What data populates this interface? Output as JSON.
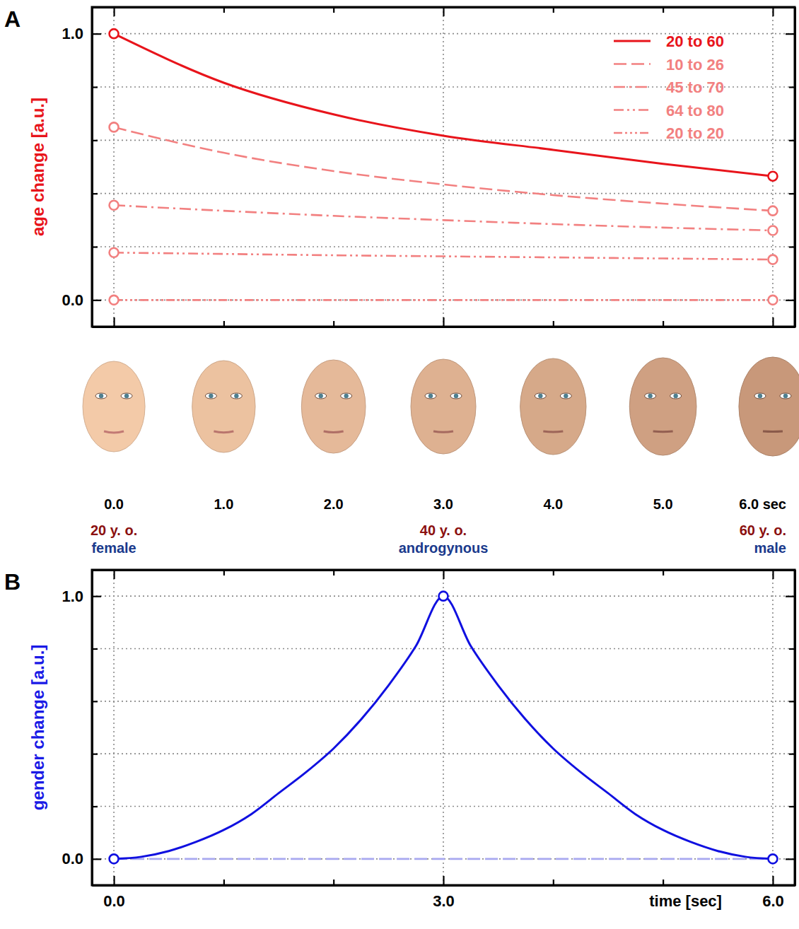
{
  "chart_data": [
    {
      "type": "line",
      "label": "A",
      "ylabel": "age change [a.u.]",
      "color": "#e8141b",
      "x": [
        0,
        1,
        2,
        3,
        4,
        5,
        6
      ],
      "xlim": [
        -0.2,
        6.2
      ],
      "xticks": [
        0,
        3,
        6
      ],
      "xticks_minor": [
        1,
        2,
        4,
        5
      ],
      "ylim": [
        -0.1,
        1.1
      ],
      "yticks": [
        {
          "value": 0,
          "label": "0.0"
        },
        {
          "value": 1,
          "label": "1.0"
        }
      ],
      "yticks_minor": [
        0.2,
        0.4,
        0.6,
        0.8
      ],
      "grid": true,
      "tick_labels": "y",
      "legend": "upper right",
      "series": [
        {
          "name": "20 to 60",
          "color": "#e8141b",
          "line_style": "solid",
          "marker": "circle",
          "values": [
            1.0,
            0.816,
            0.697,
            0.617,
            0.564,
            0.511,
            0.465
          ]
        },
        {
          "name": "10 to 26",
          "color": "#f28080",
          "line_style": "dashed",
          "marker": "circle",
          "values": [
            0.649,
            0.553,
            0.484,
            0.434,
            0.394,
            0.362,
            0.335
          ]
        },
        {
          "name": "45 to 70",
          "color": "#f28080",
          "line_style": "dashdot",
          "marker": "circle",
          "values": [
            0.356,
            0.335,
            0.316,
            0.3,
            0.285,
            0.272,
            0.261
          ]
        },
        {
          "name": "64 to 80",
          "color": "#f28080",
          "line_style": "dashdotdot",
          "marker": "circle",
          "values": [
            0.178,
            0.173,
            0.168,
            0.164,
            0.16,
            0.156,
            0.152
          ]
        },
        {
          "name": "20 to 20",
          "color": "#f28080",
          "line_style": "dashdotdotdot",
          "marker": "circle",
          "values": [
            0,
            0,
            0,
            0,
            0,
            0,
            0
          ]
        }
      ]
    },
    {
      "type": "line",
      "label": "B",
      "ylabel": "gender change [a.u.]",
      "xlabel": "time [sec]",
      "color": "#1a1ae6",
      "x": [
        0,
        0.25,
        0.5,
        0.75,
        1,
        1.25,
        1.5,
        1.75,
        2,
        2.25,
        2.5,
        2.75,
        3,
        3.25,
        3.5,
        3.75,
        4,
        4.25,
        4.5,
        4.75,
        5,
        5.25,
        5.5,
        5.75,
        6
      ],
      "xlim": [
        -0.2,
        6.2
      ],
      "xticks": [
        {
          "value": 0,
          "label": "0.0"
        },
        {
          "value": 3,
          "label": "3.0"
        },
        {
          "value": 6,
          "label": "6.0"
        }
      ],
      "xticks_minor": [
        1,
        2,
        4,
        5
      ],
      "ylim": [
        -0.1,
        1.1
      ],
      "yticks": [
        {
          "value": 0,
          "label": "0.0"
        },
        {
          "value": 1,
          "label": "1.0"
        }
      ],
      "yticks_minor": [
        0.2,
        0.4,
        0.6,
        0.8
      ],
      "grid": true,
      "series": [
        {
          "color": "#1010e0",
          "line_style": "solid",
          "marker": "circle",
          "values": [
            0,
            0.008,
            0.03,
            0.065,
            0.11,
            0.17,
            0.25,
            0.33,
            0.42,
            0.53,
            0.66,
            0.81,
            1.0,
            0.81,
            0.66,
            0.53,
            0.42,
            0.33,
            0.25,
            0.17,
            0.11,
            0.065,
            0.03,
            0.008,
            0
          ]
        },
        {
          "color": "#a8a8f0",
          "line_style": "dashed",
          "values": [
            0,
            0,
            0,
            0,
            0,
            0,
            0,
            0,
            0,
            0,
            0,
            0,
            0,
            0,
            0,
            0,
            0,
            0,
            0,
            0,
            0,
            0,
            0,
            0,
            0
          ]
        }
      ]
    }
  ],
  "face_strip": {
    "x": [
      0,
      1,
      2,
      3,
      4,
      5,
      6
    ],
    "labels": [
      "0.0",
      "1.0",
      "2.0",
      "3.0",
      "4.0",
      "5.0",
      "6.0 sec"
    ],
    "annotations": [
      {
        "time": 0,
        "age": "20 y. o.",
        "gender": "female"
      },
      {
        "time": 3,
        "age": "40 y. o.",
        "gender": "androgynous"
      },
      {
        "time": 6,
        "age": "60 y. o.",
        "gender": "male"
      }
    ]
  }
}
